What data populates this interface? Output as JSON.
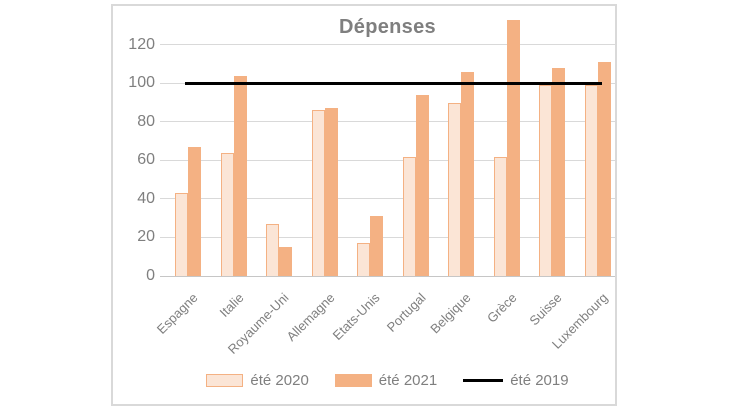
{
  "chart_data": {
    "type": "bar",
    "title": "Dépenses",
    "categories": [
      "Espagne",
      "Italie",
      "Royaume-Uni",
      "Allemagne",
      "Etats-Unis",
      "Portugal",
      "Belgique",
      "Grèce",
      "Suisse",
      "Luxembourg"
    ],
    "series": [
      {
        "name": "été 2020",
        "type": "bar",
        "values": [
          43,
          64,
          27,
          86,
          17,
          62,
          90,
          62,
          99,
          99
        ],
        "fill": "#FBE5D6",
        "border": "#F4B183"
      },
      {
        "name": "été 2021",
        "type": "bar",
        "values": [
          67,
          104,
          15,
          87,
          31,
          94,
          106,
          133,
          108,
          111
        ],
        "fill": "#F4B183",
        "border": "#F4B183"
      },
      {
        "name": "été 2019",
        "type": "line",
        "values": [
          100,
          100,
          100,
          100,
          100,
          100,
          100,
          100,
          100,
          100
        ],
        "color": "#000000"
      }
    ],
    "xlabel": "",
    "ylabel": "",
    "yticks": [
      0,
      20,
      40,
      60,
      80,
      100,
      120
    ],
    "ylim": [
      0,
      135
    ],
    "grid": true,
    "legend_position": "bottom",
    "colors": {
      "grid": "#D9D9D9",
      "axis_line": "#C6C6C6",
      "axis_text": "#7F7F7F",
      "title_text": "#7F7F7F",
      "card_border": "#D9D9D9",
      "reference_line": "#000000"
    }
  }
}
